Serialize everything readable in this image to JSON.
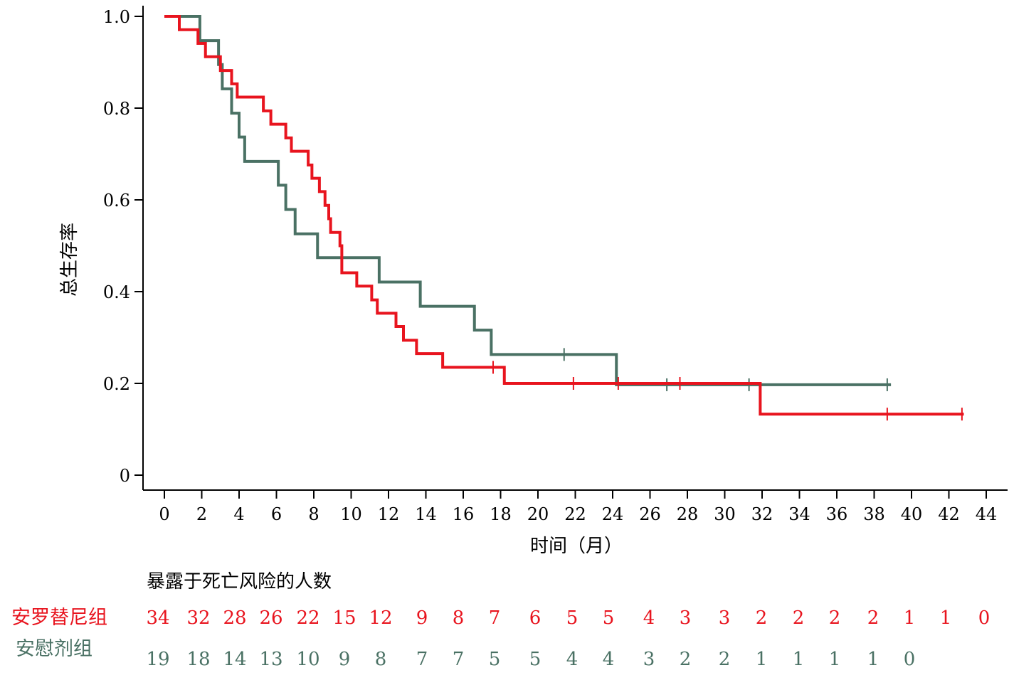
{
  "chart_data": {
    "type": "line",
    "subtype": "kaplan-meier",
    "title": "",
    "xlabel": "时间（月）",
    "ylabel": "总生存率",
    "xlim": [
      0,
      44
    ],
    "ylim": [
      0,
      1
    ],
    "x_ticks": [
      0,
      2,
      4,
      6,
      8,
      10,
      12,
      14,
      16,
      18,
      20,
      22,
      24,
      26,
      28,
      30,
      32,
      34,
      36,
      38,
      40,
      42,
      44
    ],
    "y_ticks": [
      {
        "value": 0,
        "label": "0"
      },
      {
        "value": 0.2,
        "label": "0.2"
      },
      {
        "value": 0.4,
        "label": "0.4"
      },
      {
        "value": 0.6,
        "label": "0.6"
      },
      {
        "value": 0.8,
        "label": "0.8"
      },
      {
        "value": 1.0,
        "label": "1.0"
      }
    ],
    "grid": false,
    "series": [
      {
        "name": "安罗替尼组",
        "color": "#e8141e",
        "steps": [
          [
            0,
            1.0
          ],
          [
            0.8,
            0.971
          ],
          [
            1.8,
            0.941
          ],
          [
            2.2,
            0.912
          ],
          [
            3.0,
            0.882
          ],
          [
            3.6,
            0.853
          ],
          [
            3.9,
            0.824
          ],
          [
            5.3,
            0.794
          ],
          [
            5.7,
            0.765
          ],
          [
            6.5,
            0.735
          ],
          [
            6.8,
            0.706
          ],
          [
            7.7,
            0.676
          ],
          [
            7.9,
            0.647
          ],
          [
            8.3,
            0.618
          ],
          [
            8.6,
            0.588
          ],
          [
            8.8,
            0.559
          ],
          [
            8.9,
            0.529
          ],
          [
            9.4,
            0.5
          ],
          [
            9.5,
            0.441
          ],
          [
            10.3,
            0.412
          ],
          [
            11.1,
            0.382
          ],
          [
            11.4,
            0.353
          ],
          [
            12.4,
            0.324
          ],
          [
            12.8,
            0.294
          ],
          [
            13.5,
            0.265
          ],
          [
            14.9,
            0.235
          ],
          [
            18.2,
            0.2
          ],
          [
            31.9,
            0.133
          ],
          [
            42.8,
            0.133
          ]
        ],
        "censors": [
          [
            17.6,
            0.235
          ],
          [
            21.9,
            0.2
          ],
          [
            24.3,
            0.2
          ],
          [
            27.6,
            0.2
          ],
          [
            38.7,
            0.133
          ],
          [
            42.7,
            0.133
          ]
        ]
      },
      {
        "name": "安慰剂组",
        "color": "#4a7164",
        "steps": [
          [
            0,
            1.0
          ],
          [
            1.9,
            0.947
          ],
          [
            2.9,
            0.895
          ],
          [
            3.1,
            0.842
          ],
          [
            3.6,
            0.789
          ],
          [
            4.0,
            0.737
          ],
          [
            4.3,
            0.684
          ],
          [
            6.1,
            0.632
          ],
          [
            6.5,
            0.579
          ],
          [
            7.0,
            0.526
          ],
          [
            8.2,
            0.474
          ],
          [
            11.5,
            0.421
          ],
          [
            13.7,
            0.368
          ],
          [
            16.6,
            0.316
          ],
          [
            17.5,
            0.263
          ],
          [
            24.2,
            0.197
          ],
          [
            38.9,
            0.197
          ]
        ],
        "censors": [
          [
            21.4,
            0.263
          ],
          [
            26.9,
            0.197
          ],
          [
            31.3,
            0.197
          ],
          [
            38.7,
            0.197
          ]
        ]
      }
    ]
  },
  "risk_table": {
    "title": "暴露于死亡风险的人数",
    "groups": [
      {
        "name": "安罗替尼组",
        "color": "#e8141e",
        "counts": [
          34,
          32,
          28,
          26,
          22,
          15,
          12,
          9,
          8,
          7,
          6,
          5,
          5,
          4,
          3,
          3,
          2,
          2,
          2,
          2,
          1,
          1,
          0
        ]
      },
      {
        "name": "安慰剂组",
        "color": "#4a7164",
        "counts": [
          19,
          18,
          14,
          13,
          10,
          9,
          8,
          7,
          7,
          5,
          5,
          4,
          4,
          3,
          2,
          2,
          1,
          1,
          1,
          1,
          0
        ]
      }
    ]
  }
}
